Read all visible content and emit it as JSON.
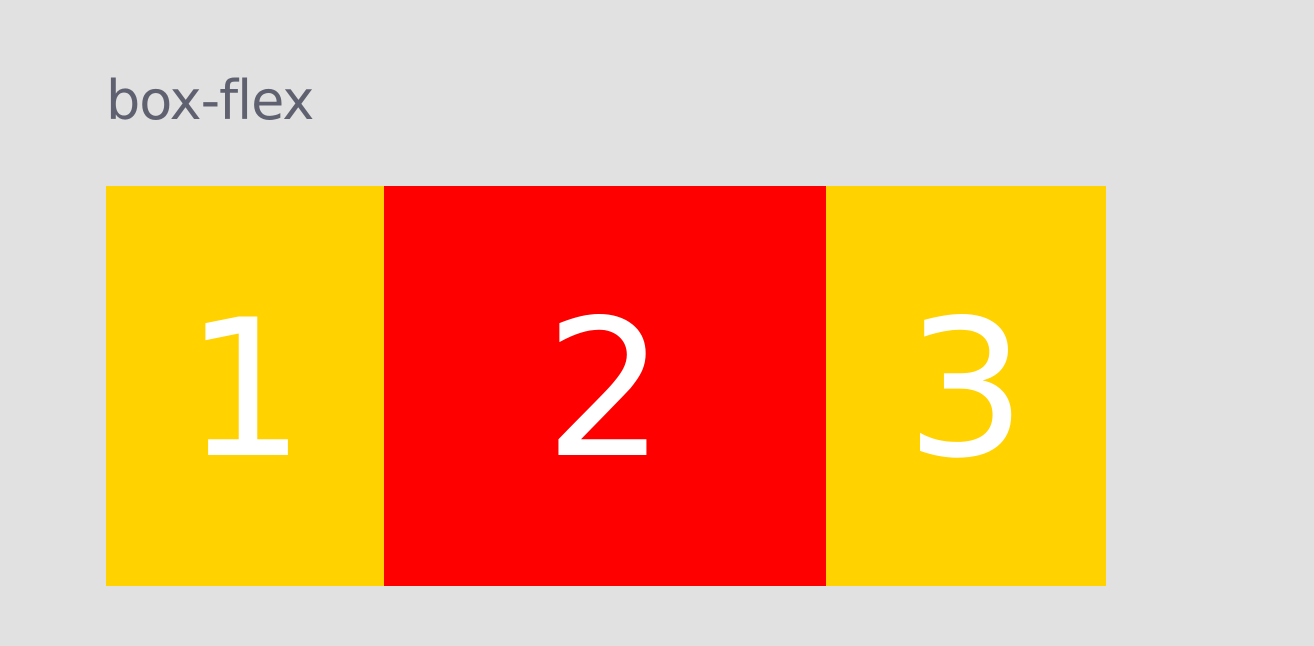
{
  "page": {
    "title": "box-flex"
  },
  "boxes": [
    {
      "label": "1",
      "color": "#ffd200"
    },
    {
      "label": "2",
      "color": "#ff0000"
    },
    {
      "label": "3",
      "color": "#ffd200"
    }
  ]
}
